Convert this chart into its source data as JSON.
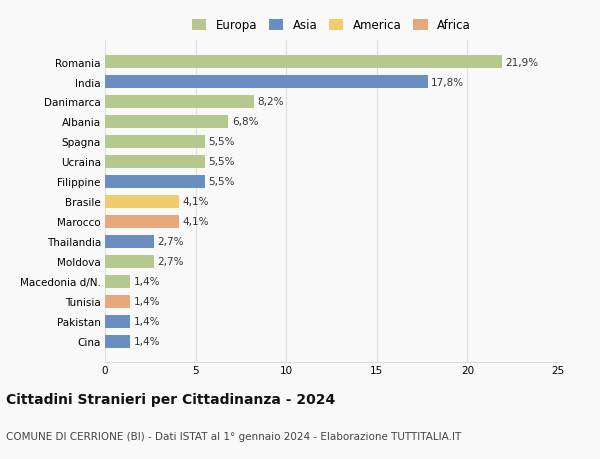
{
  "countries": [
    "Romania",
    "India",
    "Danimarca",
    "Albania",
    "Spagna",
    "Ucraina",
    "Filippine",
    "Brasile",
    "Marocco",
    "Thailandia",
    "Moldova",
    "Macedonia d/N.",
    "Tunisia",
    "Pakistan",
    "Cina"
  ],
  "values": [
    21.9,
    17.8,
    8.2,
    6.8,
    5.5,
    5.5,
    5.5,
    4.1,
    4.1,
    2.7,
    2.7,
    1.4,
    1.4,
    1.4,
    1.4
  ],
  "continents": [
    "Europa",
    "Asia",
    "Europa",
    "Europa",
    "Europa",
    "Europa",
    "Asia",
    "America",
    "Africa",
    "Asia",
    "Europa",
    "Europa",
    "Africa",
    "Asia",
    "Asia"
  ],
  "colors": {
    "Europa": "#b5c98e",
    "Asia": "#6a8ec2",
    "America": "#f0cc6e",
    "Africa": "#e8a87c"
  },
  "legend_order": [
    "Europa",
    "Asia",
    "America",
    "Africa"
  ],
  "xlim": [
    0,
    25
  ],
  "xticks": [
    0,
    5,
    10,
    15,
    20,
    25
  ],
  "title": "Cittadini Stranieri per Cittadinanza - 2024",
  "subtitle": "COMUNE DI CERRIONE (BI) - Dati ISTAT al 1° gennaio 2024 - Elaborazione TUTTITALIA.IT",
  "bar_height": 0.65,
  "background_color": "#f9f9f9",
  "grid_color": "#dddddd",
  "title_fontsize": 10,
  "subtitle_fontsize": 7.5,
  "label_fontsize": 7.5,
  "tick_fontsize": 7.5,
  "legend_fontsize": 8.5
}
